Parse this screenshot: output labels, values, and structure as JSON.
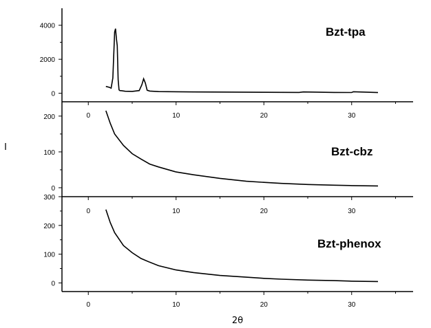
{
  "chart_data": [
    {
      "type": "line",
      "label": "Bzt-tpa",
      "xlim": [
        -3,
        37
      ],
      "ylim": [
        -500,
        5000
      ],
      "yticks": [
        0,
        2000,
        4000
      ],
      "xticks": [
        0,
        10,
        20,
        30
      ],
      "show_xtick_labels": true,
      "series": [
        {
          "name": "Bzt-tpa",
          "x": [
            2.0,
            2.4,
            2.6,
            2.8,
            3.0,
            3.1,
            3.2,
            3.3,
            3.4,
            3.5,
            3.6,
            3.8,
            4.2,
            5.0,
            5.8,
            6.1,
            6.3,
            6.5,
            6.7,
            7.0,
            8,
            12,
            16,
            20,
            24,
            24.5,
            28,
            30,
            30.2,
            33
          ],
          "y": [
            400,
            350,
            300,
            900,
            3600,
            3800,
            3200,
            2800,
            800,
            200,
            160,
            150,
            120,
            110,
            160,
            500,
            850,
            600,
            180,
            130,
            100,
            80,
            70,
            60,
            50,
            80,
            50,
            45,
            90,
            40
          ]
        }
      ]
    },
    {
      "type": "line",
      "label": "Bzt-cbz",
      "xlim": [
        -3,
        37
      ],
      "ylim": [
        -25,
        240
      ],
      "yticks": [
        0,
        100,
        200
      ],
      "xticks": [
        0,
        10,
        20,
        30
      ],
      "show_xtick_labels": true,
      "series": [
        {
          "name": "Bzt-cbz",
          "x": [
            2.0,
            2.5,
            3,
            4,
            5,
            6,
            7,
            8,
            10,
            12,
            15,
            18,
            20,
            22,
            25,
            28,
            30,
            33
          ],
          "y": [
            215,
            180,
            150,
            118,
            95,
            80,
            66,
            58,
            44,
            36,
            26,
            18,
            15,
            12,
            9,
            7,
            6,
            5
          ]
        }
      ]
    },
    {
      "type": "line",
      "label": "Bzt-phenox",
      "xlim": [
        -3,
        37
      ],
      "ylim": [
        -30,
        300
      ],
      "yticks": [
        0,
        100,
        200,
        300
      ],
      "xticks": [
        0,
        10,
        20,
        30
      ],
      "show_xtick_labels": true,
      "xlabel": "2θ",
      "series": [
        {
          "name": "Bzt-phenox",
          "x": [
            2.0,
            2.5,
            3,
            4,
            5,
            6,
            7,
            8,
            10,
            12,
            15,
            18,
            20,
            22,
            25,
            28,
            30,
            33
          ],
          "y": [
            255,
            210,
            175,
            130,
            105,
            85,
            72,
            60,
            45,
            36,
            26,
            20,
            16,
            13,
            10,
            8,
            6,
            5
          ]
        }
      ]
    }
  ],
  "ylabel": "I"
}
